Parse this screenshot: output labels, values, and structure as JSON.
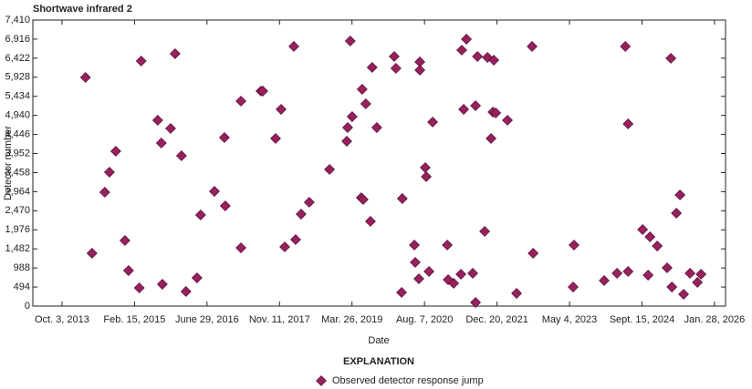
{
  "chart_data": {
    "type": "scatter",
    "title": "Shortwave infrared 2",
    "xlabel": "Date",
    "ylabel": "Detector number",
    "legend_title": "EXPLANATION",
    "legend": "bottom",
    "series": [
      {
        "name": "Observed detector response jump",
        "color": "#97205e",
        "x": [
          "2014-03-14",
          "2014-04-28",
          "2014-07-25",
          "2014-08-26",
          "2014-10-09",
          "2014-12-11",
          "2015-01-05",
          "2015-03-20",
          "2015-04-02",
          "2015-07-25",
          "2015-08-19",
          "2015-08-26",
          "2015-10-22",
          "2015-11-22",
          "2016-01-05",
          "2016-02-05",
          "2016-04-21",
          "2016-05-16",
          "2016-08-19",
          "2016-10-27",
          "2016-11-02",
          "2017-02-18",
          "2017-02-18",
          "2017-07-06",
          "2017-07-19",
          "2017-10-15",
          "2017-11-22",
          "2017-12-17",
          "2018-02-18",
          "2018-03-02",
          "2018-04-09",
          "2018-06-04",
          "2018-10-22",
          "2019-02-18",
          "2019-02-24",
          "2019-03-14",
          "2019-03-27",
          "2019-06-04",
          "2019-05-29",
          "2019-06-11",
          "2019-06-29",
          "2019-07-31",
          "2019-08-12",
          "2019-09-13",
          "2020-01-11",
          "2020-01-23",
          "2020-03-07",
          "2020-03-02",
          "2020-05-29",
          "2020-06-04",
          "2020-06-29",
          "2020-07-06",
          "2020-07-06",
          "2020-08-12",
          "2020-08-19",
          "2020-09-07",
          "2020-10-02",
          "2021-01-11",
          "2021-01-17",
          "2021-02-24",
          "2021-04-15",
          "2021-04-21",
          "2021-05-04",
          "2021-05-23",
          "2021-07-06",
          "2021-07-25",
          "2021-07-25",
          "2021-08-07",
          "2021-09-26",
          "2021-10-15",
          "2021-11-09",
          "2021-11-28",
          "2021-11-22",
          "2021-12-11",
          "2022-03-02",
          "2022-05-04",
          "2022-08-19",
          "2022-08-26",
          "2023-06-04",
          "2023-05-29",
          "2023-12-29",
          "2024-03-27",
          "2024-05-23",
          "2024-06-11",
          "2024-06-11",
          "2024-09-19",
          "2024-11-09",
          "2024-10-27",
          "2024-12-29",
          "2025-03-07",
          "2025-04-02",
          "2025-04-09",
          "2025-05-10",
          "2025-06-04",
          "2025-06-29",
          "2025-08-12",
          "2025-10-02",
          "2025-10-27"
        ],
        "values": [
          5923,
          1369,
          2950,
          3469,
          4012,
          1699,
          920,
          472,
          6348,
          4814,
          4224,
          566,
          4602,
          6537,
          3894,
          378,
          731,
          2360,
          2973,
          4366,
          2596,
          1510,
          5310,
          5569,
          5569,
          4342,
          5097,
          1534,
          6726,
          1723,
          2383,
          2690,
          3540,
          4271,
          4625,
          6867,
          4908,
          5616,
          2808,
          2761,
          5239,
          2195,
          6183,
          4625,
          6466,
          6160,
          2785,
          354,
          1581,
          1133,
          708,
          6325,
          6112,
          3587,
          3351,
          897,
          4767,
          1581,
          684,
          590,
          826,
          6631,
          5097,
          6914,
          850,
          94,
          5191,
          6466,
          1935,
          6442,
          4342,
          6371,
          5026,
          5003,
          4814,
          330,
          6726,
          1369,
          1581,
          495,
          661,
          850,
          6726,
          897,
          4720,
          1982,
          1794,
          802,
          1557,
          991,
          6419,
          495,
          2407,
          2879,
          307,
          850,
          614,
          826
        ]
      }
    ],
    "xlim": [
      "2013-03-16",
      "2026-04-14"
    ],
    "xticks": [
      {
        "value": "2013-10-03",
        "label": "Oct. 3, 2013"
      },
      {
        "value": "2015-02-15",
        "label": "Feb. 15, 2015"
      },
      {
        "value": "2016-06-29",
        "label": "June 29, 2016"
      },
      {
        "value": "2017-11-11",
        "label": "Nov. 11, 2017"
      },
      {
        "value": "2019-03-26",
        "label": "Mar. 26, 2019"
      },
      {
        "value": "2020-08-07",
        "label": "Aug. 7, 2020"
      },
      {
        "value": "2021-12-20",
        "label": "Dec. 20, 2021"
      },
      {
        "value": "2023-05-04",
        "label": "May 4, 2023"
      },
      {
        "value": "2024-09-15",
        "label": "Sept. 15, 2024"
      },
      {
        "value": "2026-01-28",
        "label": "Jan. 28, 2026"
      }
    ],
    "ylim": [
      0,
      7410
    ],
    "yticks": [
      0,
      494,
      988,
      {
        "value": 1482,
        "label": "1,482"
      },
      {
        "value": 1976,
        "label": "1,976"
      },
      {
        "value": 2470,
        "label": "2,470"
      },
      {
        "value": 2964,
        "label": "2,964"
      },
      {
        "value": 3458,
        "label": "3,458"
      },
      {
        "value": 3952,
        "label": "3,952"
      },
      {
        "value": 4446,
        "label": "4,446"
      },
      {
        "value": 4940,
        "label": "4,940"
      },
      {
        "value": 5434,
        "label": "5,434"
      },
      {
        "value": 5928,
        "label": "5,928"
      },
      {
        "value": 6422,
        "label": "6,422"
      },
      {
        "value": 6916,
        "label": "6,916"
      },
      {
        "value": 7410,
        "label": "7,410"
      }
    ],
    "grid": false
  }
}
